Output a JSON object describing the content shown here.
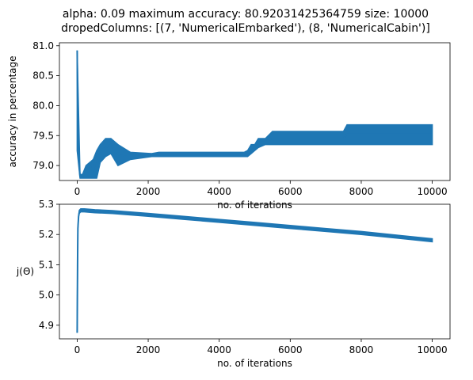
{
  "figure": {
    "title_line1": "alpha: 0.09 maximum accuracy: 80.92031425364759 size: 10000",
    "title_line2": "dropedColumns: [(7, 'NumericalEmbarked'), (8, 'NumericalCabin')]"
  },
  "chart_data": [
    {
      "type": "line",
      "xlabel": "no. of iterations",
      "ylabel": "accuracy in percentage",
      "xlim": [
        -500,
        10500
      ],
      "ylim": [
        78.75,
        81.05
      ],
      "xticks": [
        0,
        2000,
        4000,
        6000,
        8000,
        10000
      ],
      "yticks": [
        79.0,
        79.5,
        80.0,
        80.5,
        81.0
      ],
      "ytick_labels": [
        "79.0",
        "79.5",
        "80.0",
        "80.5",
        "81.0"
      ],
      "grid": false,
      "color": "#1f77b4",
      "series": [
        {
          "x": [
            0,
            15,
            30,
            50,
            80,
            150,
            250,
            350,
            450,
            550,
            650,
            800,
            950,
            1150,
            1500,
            2100,
            2300,
            3000,
            4000,
            4700,
            4800,
            4900,
            5000,
            5100,
            5300,
            5500,
            6000,
            7000,
            7500,
            7600,
            8000,
            9000,
            10000
          ],
          "y": [
            80.92,
            79.9,
            79.3,
            79.05,
            78.82,
            78.82,
            78.93,
            79.0,
            78.9,
            79.15,
            79.25,
            79.3,
            79.35,
            79.15,
            79.2,
            79.18,
            79.2,
            79.2,
            79.2,
            79.2,
            79.2,
            79.25,
            79.3,
            79.38,
            79.4,
            79.45,
            79.45,
            79.45,
            79.45,
            79.52,
            79.52,
            79.52,
            79.52
          ]
        }
      ],
      "band_top": {
        "x": [
          0,
          80,
          150,
          250,
          350,
          450,
          550,
          650,
          800,
          950,
          1150,
          1500,
          2100,
          2300,
          4700,
          4800,
          4900,
          5000,
          5100,
          5300,
          5500,
          7500,
          7600,
          10000
        ],
        "y": [
          80.92,
          78.85,
          78.85,
          79.0,
          79.05,
          79.1,
          79.25,
          79.35,
          79.45,
          79.45,
          79.35,
          79.22,
          79.2,
          79.22,
          79.22,
          79.25,
          79.35,
          79.35,
          79.45,
          79.45,
          79.57,
          79.57,
          79.68,
          79.68
        ]
      },
      "band_bottom": {
        "x": [
          0,
          80,
          150,
          250,
          350,
          450,
          550,
          650,
          800,
          950,
          1150,
          1500,
          2100,
          2300,
          4700,
          4800,
          4900,
          5000,
          5100,
          5300,
          5500,
          7500,
          7600,
          10000
        ],
        "y": [
          79.25,
          78.79,
          78.79,
          78.79,
          78.79,
          78.79,
          78.79,
          79.05,
          79.15,
          79.2,
          79.0,
          79.1,
          79.15,
          79.15,
          79.15,
          79.15,
          79.2,
          79.25,
          79.3,
          79.35,
          79.35,
          79.35,
          79.35,
          79.35
        ]
      }
    },
    {
      "type": "line",
      "xlabel": "no. of iterations",
      "ylabel": "j(Θ)",
      "xlim": [
        -500,
        10500
      ],
      "ylim": [
        4.855,
        5.3
      ],
      "xticks": [
        0,
        2000,
        4000,
        6000,
        8000,
        10000
      ],
      "yticks": [
        4.9,
        5.0,
        5.1,
        5.2,
        5.3
      ],
      "ytick_labels": [
        "4.9",
        "5.0",
        "5.1",
        "5.2",
        "5.3"
      ],
      "grid": false,
      "color": "#1f77b4",
      "series": [
        {
          "x": [
            0,
            10,
            20,
            40,
            60,
            100,
            200,
            500,
            1000,
            2000,
            3000,
            4000,
            5000,
            6000,
            7000,
            8000,
            9000,
            10000
          ],
          "y": [
            4.875,
            5.1,
            5.22,
            5.26,
            5.275,
            5.28,
            5.28,
            5.277,
            5.274,
            5.265,
            5.255,
            5.245,
            5.235,
            5.225,
            5.215,
            5.205,
            5.193,
            5.181
          ]
        }
      ],
      "band_half_width": 0.005
    }
  ]
}
